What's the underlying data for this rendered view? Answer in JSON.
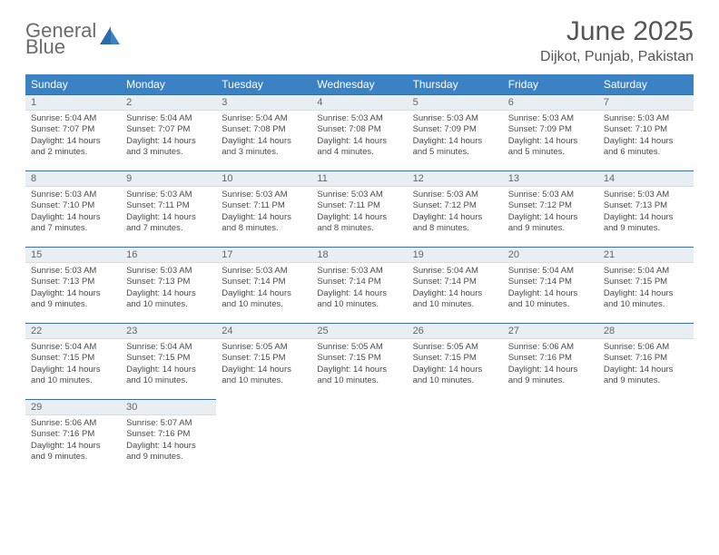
{
  "logo": {
    "word1": "General",
    "word2": "Blue"
  },
  "title": "June 2025",
  "subtitle": "Dijkot, Punjab, Pakistan",
  "colors": {
    "header_bg": "#3b82c4",
    "header_text": "#ffffff",
    "daynum_bg": "#e9eef2",
    "daynum_border_top": "#3b6ea0",
    "body_text": "#4a4a4a",
    "title_text": "#555555",
    "logo_gray": "#6b6b6b",
    "logo_blue": "#3b82c4",
    "page_bg": "#ffffff"
  },
  "weekdays": [
    "Sunday",
    "Monday",
    "Tuesday",
    "Wednesday",
    "Thursday",
    "Friday",
    "Saturday"
  ],
  "weeks": [
    [
      {
        "n": "1",
        "sr": "Sunrise: 5:04 AM",
        "ss": "Sunset: 7:07 PM",
        "d1": "Daylight: 14 hours",
        "d2": "and 2 minutes."
      },
      {
        "n": "2",
        "sr": "Sunrise: 5:04 AM",
        "ss": "Sunset: 7:07 PM",
        "d1": "Daylight: 14 hours",
        "d2": "and 3 minutes."
      },
      {
        "n": "3",
        "sr": "Sunrise: 5:04 AM",
        "ss": "Sunset: 7:08 PM",
        "d1": "Daylight: 14 hours",
        "d2": "and 3 minutes."
      },
      {
        "n": "4",
        "sr": "Sunrise: 5:03 AM",
        "ss": "Sunset: 7:08 PM",
        "d1": "Daylight: 14 hours",
        "d2": "and 4 minutes."
      },
      {
        "n": "5",
        "sr": "Sunrise: 5:03 AM",
        "ss": "Sunset: 7:09 PM",
        "d1": "Daylight: 14 hours",
        "d2": "and 5 minutes."
      },
      {
        "n": "6",
        "sr": "Sunrise: 5:03 AM",
        "ss": "Sunset: 7:09 PM",
        "d1": "Daylight: 14 hours",
        "d2": "and 5 minutes."
      },
      {
        "n": "7",
        "sr": "Sunrise: 5:03 AM",
        "ss": "Sunset: 7:10 PM",
        "d1": "Daylight: 14 hours",
        "d2": "and 6 minutes."
      }
    ],
    [
      {
        "n": "8",
        "sr": "Sunrise: 5:03 AM",
        "ss": "Sunset: 7:10 PM",
        "d1": "Daylight: 14 hours",
        "d2": "and 7 minutes."
      },
      {
        "n": "9",
        "sr": "Sunrise: 5:03 AM",
        "ss": "Sunset: 7:11 PM",
        "d1": "Daylight: 14 hours",
        "d2": "and 7 minutes."
      },
      {
        "n": "10",
        "sr": "Sunrise: 5:03 AM",
        "ss": "Sunset: 7:11 PM",
        "d1": "Daylight: 14 hours",
        "d2": "and 8 minutes."
      },
      {
        "n": "11",
        "sr": "Sunrise: 5:03 AM",
        "ss": "Sunset: 7:11 PM",
        "d1": "Daylight: 14 hours",
        "d2": "and 8 minutes."
      },
      {
        "n": "12",
        "sr": "Sunrise: 5:03 AM",
        "ss": "Sunset: 7:12 PM",
        "d1": "Daylight: 14 hours",
        "d2": "and 8 minutes."
      },
      {
        "n": "13",
        "sr": "Sunrise: 5:03 AM",
        "ss": "Sunset: 7:12 PM",
        "d1": "Daylight: 14 hours",
        "d2": "and 9 minutes."
      },
      {
        "n": "14",
        "sr": "Sunrise: 5:03 AM",
        "ss": "Sunset: 7:13 PM",
        "d1": "Daylight: 14 hours",
        "d2": "and 9 minutes."
      }
    ],
    [
      {
        "n": "15",
        "sr": "Sunrise: 5:03 AM",
        "ss": "Sunset: 7:13 PM",
        "d1": "Daylight: 14 hours",
        "d2": "and 9 minutes."
      },
      {
        "n": "16",
        "sr": "Sunrise: 5:03 AM",
        "ss": "Sunset: 7:13 PM",
        "d1": "Daylight: 14 hours",
        "d2": "and 10 minutes."
      },
      {
        "n": "17",
        "sr": "Sunrise: 5:03 AM",
        "ss": "Sunset: 7:14 PM",
        "d1": "Daylight: 14 hours",
        "d2": "and 10 minutes."
      },
      {
        "n": "18",
        "sr": "Sunrise: 5:03 AM",
        "ss": "Sunset: 7:14 PM",
        "d1": "Daylight: 14 hours",
        "d2": "and 10 minutes."
      },
      {
        "n": "19",
        "sr": "Sunrise: 5:04 AM",
        "ss": "Sunset: 7:14 PM",
        "d1": "Daylight: 14 hours",
        "d2": "and 10 minutes."
      },
      {
        "n": "20",
        "sr": "Sunrise: 5:04 AM",
        "ss": "Sunset: 7:14 PM",
        "d1": "Daylight: 14 hours",
        "d2": "and 10 minutes."
      },
      {
        "n": "21",
        "sr": "Sunrise: 5:04 AM",
        "ss": "Sunset: 7:15 PM",
        "d1": "Daylight: 14 hours",
        "d2": "and 10 minutes."
      }
    ],
    [
      {
        "n": "22",
        "sr": "Sunrise: 5:04 AM",
        "ss": "Sunset: 7:15 PM",
        "d1": "Daylight: 14 hours",
        "d2": "and 10 minutes."
      },
      {
        "n": "23",
        "sr": "Sunrise: 5:04 AM",
        "ss": "Sunset: 7:15 PM",
        "d1": "Daylight: 14 hours",
        "d2": "and 10 minutes."
      },
      {
        "n": "24",
        "sr": "Sunrise: 5:05 AM",
        "ss": "Sunset: 7:15 PM",
        "d1": "Daylight: 14 hours",
        "d2": "and 10 minutes."
      },
      {
        "n": "25",
        "sr": "Sunrise: 5:05 AM",
        "ss": "Sunset: 7:15 PM",
        "d1": "Daylight: 14 hours",
        "d2": "and 10 minutes."
      },
      {
        "n": "26",
        "sr": "Sunrise: 5:05 AM",
        "ss": "Sunset: 7:15 PM",
        "d1": "Daylight: 14 hours",
        "d2": "and 10 minutes."
      },
      {
        "n": "27",
        "sr": "Sunrise: 5:06 AM",
        "ss": "Sunset: 7:16 PM",
        "d1": "Daylight: 14 hours",
        "d2": "and 9 minutes."
      },
      {
        "n": "28",
        "sr": "Sunrise: 5:06 AM",
        "ss": "Sunset: 7:16 PM",
        "d1": "Daylight: 14 hours",
        "d2": "and 9 minutes."
      }
    ],
    [
      {
        "n": "29",
        "sr": "Sunrise: 5:06 AM",
        "ss": "Sunset: 7:16 PM",
        "d1": "Daylight: 14 hours",
        "d2": "and 9 minutes."
      },
      {
        "n": "30",
        "sr": "Sunrise: 5:07 AM",
        "ss": "Sunset: 7:16 PM",
        "d1": "Daylight: 14 hours",
        "d2": "and 9 minutes."
      },
      null,
      null,
      null,
      null,
      null
    ]
  ]
}
